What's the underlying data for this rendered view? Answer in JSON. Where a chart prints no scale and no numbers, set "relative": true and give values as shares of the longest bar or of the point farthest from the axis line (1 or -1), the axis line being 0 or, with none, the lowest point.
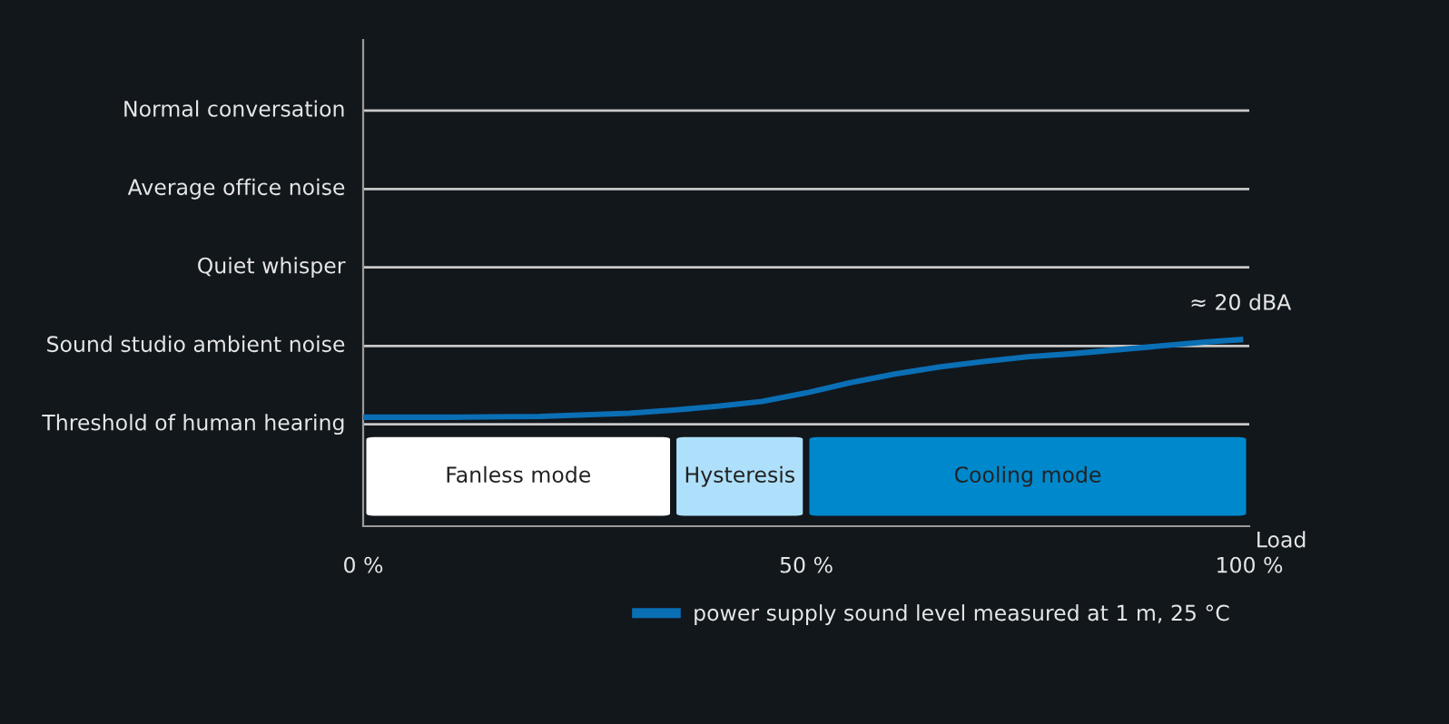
{
  "chart_data": {
    "type": "line",
    "xlabel": "Load",
    "relative": true,
    "x": [
      0,
      10,
      20,
      30,
      35,
      40,
      45,
      50,
      55,
      60,
      65,
      70,
      75,
      80,
      85,
      90,
      95,
      99
    ],
    "series": [
      {
        "name": "power supply sound level measured at 1 m, 25 °C",
        "color": "#0a6fb5",
        "values": [
          0.584,
          0.584,
          0.588,
          0.605,
          0.622,
          0.643,
          0.668,
          0.714,
          0.769,
          0.815,
          0.853,
          0.882,
          0.908,
          0.924,
          0.945,
          0.966,
          0.987,
          1
        ]
      }
    ],
    "xlim": [
      0,
      100
    ],
    "xticks": [
      {
        "value": 0,
        "label": "0 %"
      },
      {
        "value": 50,
        "label": "50 %"
      },
      {
        "value": 100,
        "label": "100 %"
      }
    ],
    "ref_lines": [
      {
        "axis": "y",
        "value": 0.546,
        "label": "Threshold of human hearing",
        "color": "#c8c8c8"
      },
      {
        "axis": "y",
        "value": 0.966,
        "label": "Sound studio ambient noise",
        "color": "#c8c8c8"
      },
      {
        "axis": "y",
        "value": 1.387,
        "label": "Quiet whisper",
        "color": "#c8c8c8"
      },
      {
        "axis": "y",
        "value": 1.807,
        "label": "Average office noise",
        "color": "#c8c8c8"
      },
      {
        "axis": "y",
        "value": 2.227,
        "label": "Normal conversation",
        "color": "#c8c8c8"
      }
    ],
    "legend": "bottom right",
    "marker": "none",
    "line_style": "solid",
    "bands": [
      {
        "axis": "x",
        "from": 0,
        "to": 35,
        "label": "Fanless mode",
        "color": "#ffffff"
      },
      {
        "axis": "x",
        "from": 35,
        "to": 50,
        "label": "Hysteresis",
        "color": "#aee0fb"
      },
      {
        "axis": "x",
        "from": 50,
        "to": 100,
        "label": "Cooling mode",
        "color": "#0088cc"
      }
    ],
    "annotations": [
      {
        "text": "≈ 20 dBA",
        "x": 99,
        "y": 1
      }
    ]
  }
}
